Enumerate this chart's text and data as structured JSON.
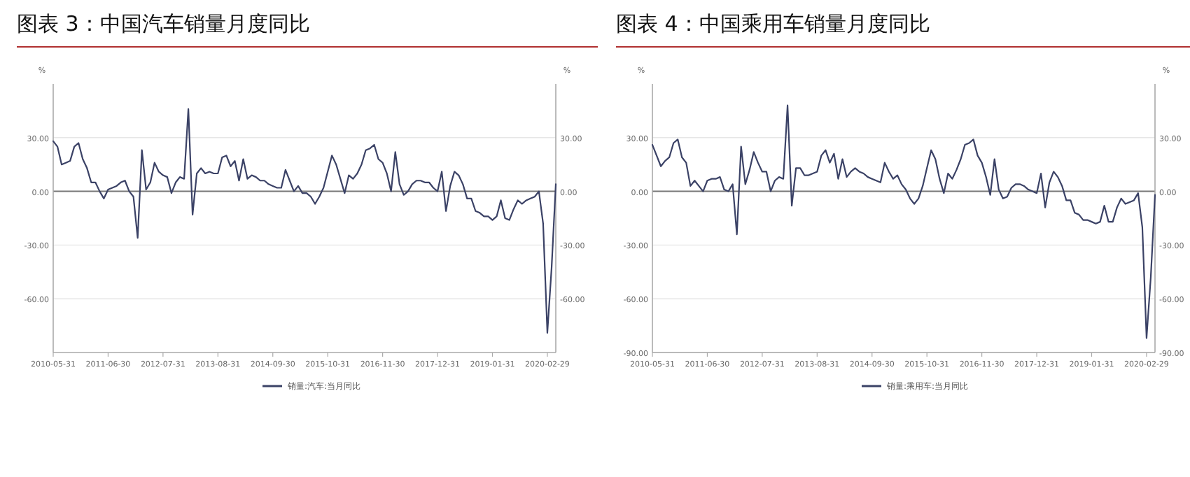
{
  "chart_data": [
    {
      "type": "line",
      "title": "图表 3：中国汽车销量月度同比",
      "ylabel": "%",
      "y2label": "%",
      "grid": "y",
      "legend": "bottom",
      "x": [
        "2010-05",
        "2010-06",
        "2010-07",
        "2010-08",
        "2010-09",
        "2010-10",
        "2010-11",
        "2010-12",
        "2011-01",
        "2011-02",
        "2011-03",
        "2011-04",
        "2011-05",
        "2011-06",
        "2011-07",
        "2011-08",
        "2011-09",
        "2011-10",
        "2011-11",
        "2011-12",
        "2012-01",
        "2012-02",
        "2012-03",
        "2012-04",
        "2012-05",
        "2012-06",
        "2012-07",
        "2012-08",
        "2012-09",
        "2012-10",
        "2012-11",
        "2012-12",
        "2013-01",
        "2013-02",
        "2013-03",
        "2013-04",
        "2013-05",
        "2013-06",
        "2013-07",
        "2013-08",
        "2013-09",
        "2013-10",
        "2013-11",
        "2013-12",
        "2014-01",
        "2014-02",
        "2014-03",
        "2014-04",
        "2014-05",
        "2014-06",
        "2014-07",
        "2014-08",
        "2014-09",
        "2014-10",
        "2014-11",
        "2014-12",
        "2015-01",
        "2015-02",
        "2015-03",
        "2015-04",
        "2015-05",
        "2015-06",
        "2015-07",
        "2015-08",
        "2015-09",
        "2015-10",
        "2015-11",
        "2015-12",
        "2016-01",
        "2016-02",
        "2016-03",
        "2016-04",
        "2016-05",
        "2016-06",
        "2016-07",
        "2016-08",
        "2016-09",
        "2016-10",
        "2016-11",
        "2016-12",
        "2017-01",
        "2017-02",
        "2017-03",
        "2017-04",
        "2017-05",
        "2017-06",
        "2017-07",
        "2017-08",
        "2017-09",
        "2017-10",
        "2017-11",
        "2017-12",
        "2018-01",
        "2018-02",
        "2018-03",
        "2018-04",
        "2018-05",
        "2018-06",
        "2018-07",
        "2018-08",
        "2018-09",
        "2018-10",
        "2018-11",
        "2018-12",
        "2019-01",
        "2019-02",
        "2019-03",
        "2019-04",
        "2019-05",
        "2019-06",
        "2019-07",
        "2019-08",
        "2019-09",
        "2019-10",
        "2019-11",
        "2019-12",
        "2020-01",
        "2020-02",
        "2020-03",
        "2020-04"
      ],
      "series": [
        {
          "name": "销量:汽车:当月同比",
          "color": "#3b4266",
          "values": [
            28,
            25,
            15,
            16,
            17,
            25,
            27,
            18,
            13,
            5,
            5,
            0,
            -4,
            1,
            2,
            3,
            5,
            6,
            0,
            -3,
            -26,
            23,
            1,
            5,
            16,
            11,
            9,
            8,
            -1,
            5,
            8,
            7,
            46,
            -13,
            10,
            13,
            10,
            11,
            10,
            10,
            19,
            20,
            14,
            17,
            6,
            18,
            7,
            9,
            8,
            6,
            6,
            4,
            3,
            2,
            2,
            12,
            6,
            0,
            3,
            -1,
            -1,
            -3,
            -7,
            -3,
            2,
            11,
            20,
            15,
            7,
            -1,
            9,
            7,
            10,
            15,
            23,
            24,
            26,
            18,
            16,
            10,
            0,
            22,
            4,
            -2,
            0,
            4,
            6,
            6,
            5,
            5,
            2,
            0,
            11,
            -11,
            3,
            11,
            9,
            4,
            -4,
            -4,
            -11,
            -12,
            -14,
            -14,
            -16,
            -14,
            -5,
            -15,
            -16,
            -10,
            -5,
            -7,
            -5,
            -4,
            -3,
            0,
            -18,
            -79,
            -43,
            4
          ]
        }
      ],
      "xlim": [
        "2010-05",
        "2020-04"
      ],
      "xticks": [
        {
          "value": "2010-05",
          "label": "2010-05-31"
        },
        {
          "value": "2011-06",
          "label": "2011-06-30"
        },
        {
          "value": "2012-07",
          "label": "2012-07-31"
        },
        {
          "value": "2013-08",
          "label": "2013-08-31"
        },
        {
          "value": "2014-09",
          "label": "2014-09-30"
        },
        {
          "value": "2015-10",
          "label": "2015-10-31"
        },
        {
          "value": "2016-11",
          "label": "2016-11-30"
        },
        {
          "value": "2017-12",
          "label": "2017-12-31"
        },
        {
          "value": "2019-01",
          "label": "2019-01-31"
        },
        {
          "value": "2020-02",
          "label": "2020-02-29"
        }
      ],
      "ylim": [
        -90,
        60
      ],
      "yticks": [
        {
          "value": -60,
          "label": "-60.00"
        },
        {
          "value": -30,
          "label": "-30.00"
        },
        {
          "value": 0,
          "label": "0.00"
        },
        {
          "value": 30,
          "label": "30.00"
        }
      ],
      "y2lim": [
        -90,
        60
      ],
      "y2ticks": [
        {
          "value": -60,
          "label": "-60.00"
        },
        {
          "value": -30,
          "label": "-30.00"
        },
        {
          "value": 0,
          "label": "0.00"
        },
        {
          "value": 30,
          "label": "30.00"
        }
      ]
    },
    {
      "type": "line",
      "title": "图表 4：中国乘用车销量月度同比",
      "ylabel": "%",
      "y2label": "%",
      "grid": "y",
      "legend": "bottom",
      "x": [
        "2010-05",
        "2010-06",
        "2010-07",
        "2010-08",
        "2010-09",
        "2010-10",
        "2010-11",
        "2010-12",
        "2011-01",
        "2011-02",
        "2011-03",
        "2011-04",
        "2011-05",
        "2011-06",
        "2011-07",
        "2011-08",
        "2011-09",
        "2011-10",
        "2011-11",
        "2011-12",
        "2012-01",
        "2012-02",
        "2012-03",
        "2012-04",
        "2012-05",
        "2012-06",
        "2012-07",
        "2012-08",
        "2012-09",
        "2012-10",
        "2012-11",
        "2012-12",
        "2013-01",
        "2013-02",
        "2013-03",
        "2013-04",
        "2013-05",
        "2013-06",
        "2013-07",
        "2013-08",
        "2013-09",
        "2013-10",
        "2013-11",
        "2013-12",
        "2014-01",
        "2014-02",
        "2014-03",
        "2014-04",
        "2014-05",
        "2014-06",
        "2014-07",
        "2014-08",
        "2014-09",
        "2014-10",
        "2014-11",
        "2014-12",
        "2015-01",
        "2015-02",
        "2015-03",
        "2015-04",
        "2015-05",
        "2015-06",
        "2015-07",
        "2015-08",
        "2015-09",
        "2015-10",
        "2015-11",
        "2015-12",
        "2016-01",
        "2016-02",
        "2016-03",
        "2016-04",
        "2016-05",
        "2016-06",
        "2016-07",
        "2016-08",
        "2016-09",
        "2016-10",
        "2016-11",
        "2016-12",
        "2017-01",
        "2017-02",
        "2017-03",
        "2017-04",
        "2017-05",
        "2017-06",
        "2017-07",
        "2017-08",
        "2017-09",
        "2017-10",
        "2017-11",
        "2017-12",
        "2018-01",
        "2018-02",
        "2018-03",
        "2018-04",
        "2018-05",
        "2018-06",
        "2018-07",
        "2018-08",
        "2018-09",
        "2018-10",
        "2018-11",
        "2018-12",
        "2019-01",
        "2019-02",
        "2019-03",
        "2019-04",
        "2019-05",
        "2019-06",
        "2019-07",
        "2019-08",
        "2019-09",
        "2019-10",
        "2019-11",
        "2019-12",
        "2020-01",
        "2020-02",
        "2020-03",
        "2020-04"
      ],
      "series": [
        {
          "name": "销量:乘用车:当月同比",
          "color": "#3b4266",
          "values": [
            26,
            20,
            14,
            17,
            19,
            27,
            29,
            19,
            16,
            3,
            6,
            3,
            0,
            6,
            7,
            7,
            8,
            1,
            0,
            4,
            -24,
            25,
            4,
            12,
            22,
            16,
            11,
            11,
            0,
            6,
            8,
            7,
            48,
            -8,
            13,
            13,
            9,
            9,
            10,
            11,
            20,
            23,
            16,
            21,
            7,
            18,
            8,
            11,
            13,
            11,
            10,
            8,
            7,
            6,
            5,
            16,
            11,
            7,
            9,
            4,
            1,
            -4,
            -7,
            -4,
            3,
            13,
            23,
            18,
            7,
            -1,
            10,
            7,
            12,
            18,
            26,
            27,
            29,
            20,
            16,
            8,
            -2,
            18,
            1,
            -4,
            -3,
            2,
            4,
            4,
            3,
            1,
            0,
            -1,
            10,
            -9,
            5,
            11,
            8,
            3,
            -5,
            -5,
            -12,
            -13,
            -16,
            -16,
            -17,
            -18,
            -17,
            -8,
            -17,
            -17,
            -9,
            -4,
            -7,
            -6,
            -5,
            -1,
            -20,
            -82,
            -48,
            -2
          ]
        }
      ],
      "xlim": [
        "2010-05",
        "2020-04"
      ],
      "xticks": [
        {
          "value": "2010-05",
          "label": "2010-05-31"
        },
        {
          "value": "2011-06",
          "label": "2011-06-30"
        },
        {
          "value": "2012-07",
          "label": "2012-07-31"
        },
        {
          "value": "2013-08",
          "label": "2013-08-31"
        },
        {
          "value": "2014-09",
          "label": "2014-09-30"
        },
        {
          "value": "2015-10",
          "label": "2015-10-31"
        },
        {
          "value": "2016-11",
          "label": "2016-11-30"
        },
        {
          "value": "2017-12",
          "label": "2017-12-31"
        },
        {
          "value": "2019-01",
          "label": "2019-01-31"
        },
        {
          "value": "2020-02",
          "label": "2020-02-29"
        }
      ],
      "ylim": [
        -90,
        60
      ],
      "yticks": [
        {
          "value": -90,
          "label": "-90.00"
        },
        {
          "value": -60,
          "label": "-60.00"
        },
        {
          "value": -30,
          "label": "-30.00"
        },
        {
          "value": 0,
          "label": "0.00"
        },
        {
          "value": 30,
          "label": "30.00"
        }
      ],
      "y2lim": [
        -90,
        60
      ],
      "y2ticks": [
        {
          "value": -90,
          "label": "-90.00"
        },
        {
          "value": -60,
          "label": "-60.00"
        },
        {
          "value": -30,
          "label": "-30.00"
        },
        {
          "value": 0,
          "label": "0.00"
        },
        {
          "value": 30,
          "label": "30.00"
        }
      ]
    }
  ]
}
